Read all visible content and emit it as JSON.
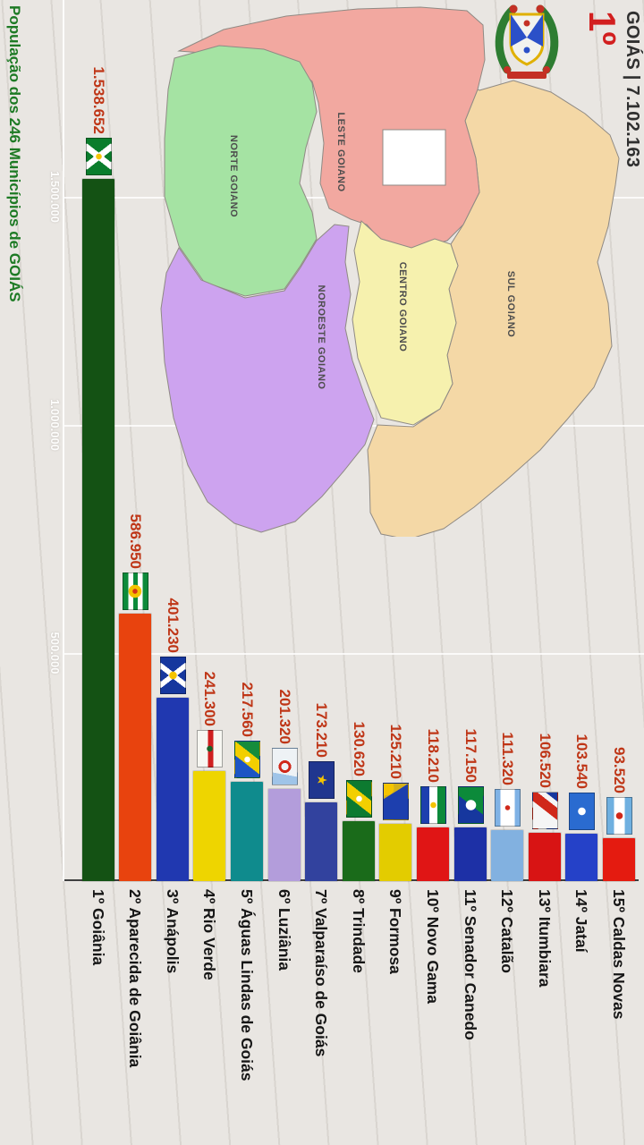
{
  "page": {
    "background": "#e9e6e2"
  },
  "title": "População dos 246 Municípios de GOIÁS",
  "header": {
    "state_line": "GOIÁS | 7.102.163",
    "rank": "1º",
    "coat_of_arms_icon": "goias-coat-of-arms"
  },
  "palette": {
    "title": "#1d7a24",
    "value": "#bf3617",
    "label": "#161616",
    "rank": "#d21f1f",
    "state_line": "#2f2f2f",
    "gridline_label": "#fdfdfc"
  },
  "map": {
    "name": "Mapa de Goiás - mesorregiões",
    "df_cutout_color": "#ffffff",
    "regions": [
      {
        "name": "NORTE GOIANO",
        "color": "#a5e3a3"
      },
      {
        "name": "LESTE GOIANO",
        "color": "#f2a8a0"
      },
      {
        "name": "NOROESTE GOIANO",
        "color": "#cda3ef"
      },
      {
        "name": "CENTRO GOIANO",
        "color": "#f6f1ae"
      },
      {
        "name": "SUL GOIANO",
        "color": "#f4d8a6"
      }
    ]
  },
  "chart_data": {
    "type": "bar",
    "title": "População dos 246 Municípios de GOIÁS",
    "total_label": "GOIÁS | 7.102.163",
    "total_value": 7102163,
    "x_max": 1550000,
    "gridlines": [
      {
        "value": 500000,
        "label": "500.000"
      },
      {
        "value": 1000000,
        "label": "1.000.000"
      },
      {
        "value": 1500000,
        "label": "1.500.000"
      }
    ],
    "rows": [
      {
        "rank": 1,
        "rank_label": "1º",
        "name": "Goiânia",
        "label": "1º Goiânia",
        "value": 1538652,
        "value_label": "1.538.652",
        "color": "#145214",
        "flag": {
          "name": "flag-goiania",
          "background": "radial-gradient(circle at 50% 50%, #f5c400 0 3px, rgba(0,0,0,0) 3.5px), linear-gradient(52deg, rgba(0,0,0,0) 43%, #ffffff 43%, #ffffff 57%, rgba(0,0,0,0) 57%), linear-gradient(-52deg, rgba(0,0,0,0) 43%, #ffffff 43%, #ffffff 57%, rgba(0,0,0,0) 57%), linear-gradient(#0a7d2c, #0a7d2c)"
        }
      },
      {
        "rank": 2,
        "rank_label": "2º",
        "name": "Aparecida de Goiânia",
        "label": "2º Aparecida de Goiânia",
        "value": 586950,
        "value_label": "586.950",
        "color": "#e8430e",
        "flag": {
          "name": "flag-aparecida-de-goiania",
          "background": "radial-gradient(circle at 50% 52%, #d43318 0 2.5px, rgba(0,0,0,0) 3px), radial-gradient(circle at 50% 52%, #f3c300 0 7px, rgba(0,0,0,0) 7.5px), linear-gradient(#0c8a3a 0 20%, #ffffff 20% 40%, #0c8a3a 40% 60%, #ffffff 60% 80%, #0c8a3a 80%)"
        }
      },
      {
        "rank": 3,
        "rank_label": "3º",
        "name": "Anápolis",
        "label": "3º Anápolis",
        "value": 401230,
        "value_label": "401.230",
        "color": "#2038b0",
        "flag": {
          "name": "flag-anapolis",
          "background": "radial-gradient(circle at 50% 50%, #f5c400 0 4px, rgba(0,0,0,0) 4.5px), linear-gradient(52deg, rgba(0,0,0,0) 44%, #ffffff 44%, #ffffff 56%, rgba(0,0,0,0) 56%), linear-gradient(-52deg, rgba(0,0,0,0) 44%, #ffffff 44%, #ffffff 56%, rgba(0,0,0,0) 56%), linear-gradient(#16379e, #16379e)"
        }
      },
      {
        "rank": 4,
        "rank_label": "4º",
        "name": "Rio Verde",
        "label": "4º Rio Verde",
        "value": 241300,
        "value_label": "241.300",
        "color": "#eed500",
        "flag": {
          "name": "flag-rio-verde",
          "background": "radial-gradient(circle at 50% 50%, #17662a 0 3px, rgba(0,0,0,0) 3.5px), linear-gradient(rgba(0,0,0,0) 0 36%, #cf2020 36% 58%, rgba(0,0,0,0) 58%), linear-gradient(#f7f7f2, #f7f7f2)"
        }
      },
      {
        "rank": 5,
        "rank_label": "5º",
        "name": "Águas Lindas de Goiás",
        "label": "5º Águas Lindas de Goiás",
        "value": 217560,
        "value_label": "217.560",
        "color": "#0f8b8d",
        "flag": {
          "name": "flag-aguas-lindas-de-goias",
          "background": "radial-gradient(circle at 50% 50%, #ffffff 0 3px, rgba(0,0,0,0) 3.5px), linear-gradient(128deg, #168c3c 0 34%, #f2cf00 34% 60%, #1c55c4 60%)"
        }
      },
      {
        "rank": 6,
        "rank_label": "6º",
        "name": "Luziânia",
        "label": "6º Luziânia",
        "value": 201320,
        "value_label": "201.320",
        "color": "#b39ddb",
        "flag": {
          "name": "flag-luziania",
          "background": "radial-gradient(circle at 50% 50%, rgba(0,0,0,0) 0 4px, #d0281a 4px 7px, rgba(0,0,0,0) 7px), linear-gradient(100deg, #eef2f5 0 70%, #9fc4e8 70%)"
        }
      },
      {
        "rank": 7,
        "rank_label": "7º",
        "name": "Valparaíso de Goiás",
        "label": "7º Valparaíso de Goiás",
        "value": 173210,
        "value_label": "173.210",
        "color": "#32429e",
        "flag": {
          "name": "flag-valparaiso-de-goias",
          "background": "linear-gradient(#20368f, #20368f)",
          "glyph": "★",
          "glyph_color": "#f5c400"
        }
      },
      {
        "rank": 8,
        "rank_label": "8º",
        "name": "Trindade",
        "label": "8º Trindade",
        "value": 130620,
        "value_label": "130.620",
        "color": "#1a6b1a",
        "flag": {
          "name": "flag-trindade",
          "background": "radial-gradient(circle at 50% 50%, #ffffff 0 3px, rgba(0,0,0,0) 3.5px), linear-gradient(128deg, rgba(0,0,0,0) 0 36%, #f2cf00 36% 62%, rgba(0,0,0,0) 62%), linear-gradient(#0d7a30, #0d7a30)"
        }
      },
      {
        "rank": 9,
        "rank_label": "9º",
        "name": "Formosa",
        "label": "9º Formosa",
        "value": 125210,
        "value_label": "125.210",
        "color": "#e3cc00",
        "flag": {
          "name": "flag-formosa",
          "background": "radial-gradient(circle at 12% 88%, #f5c400 0 8px, rgba(0,0,0,0) 8.5px), linear-gradient(38deg, rgba(245,196,0,0.9) 0 20%, rgba(0,0,0,0) 20.5%), linear-gradient(58deg, rgba(245,196,0,0.85) 0 30%, rgba(0,0,0,0) 30.5%), linear-gradient(#1d3fae, #1d3fae)"
        }
      },
      {
        "rank": 10,
        "rank_label": "10º",
        "name": "Novo Gama",
        "label": "10º Novo Gama",
        "value": 118210,
        "value_label": "118.210",
        "color": "#e01515",
        "flag": {
          "name": "flag-novo-gama",
          "background": "radial-gradient(circle at 50% 50%, #f3c300 0 3px, rgba(0,0,0,0) 3.5px), linear-gradient(#0c8a3a 0 33%, #ffffff 33% 66%, #1d3fae 66%)"
        }
      },
      {
        "rank": 11,
        "rank_label": "11º",
        "name": "Senador Canedo",
        "label": "11º Senador Canedo",
        "value": 117150,
        "value_label": "117.150",
        "color": "#1d30a6",
        "flag": {
          "name": "flag-senador-canedo",
          "background": "radial-gradient(circle at 50% 50%, #ffffff 0 5.5px, rgba(0,0,0,0) 6px), linear-gradient(128deg, #0c8a3a 0 50%, #16379e 50%)"
        }
      },
      {
        "rank": 12,
        "rank_label": "12º",
        "name": "Catalão",
        "label": "12º Catalão",
        "value": 111320,
        "value_label": "111.320",
        "color": "#82b1e0",
        "flag": {
          "name": "flag-catalao",
          "background": "radial-gradient(circle at 50% 50%, #d0281a 0 2.5px, rgba(0,0,0,0) 3px), linear-gradient(#7fb2e5 0 20%, #ffffff 20% 80%, #7fb2e5 80%)"
        }
      },
      {
        "rank": 13,
        "rank_label": "13º",
        "name": "Itumbiara",
        "label": "13º Itumbiara",
        "value": 106520,
        "value_label": "106.520",
        "color": "#d81414",
        "flag": {
          "name": "flag-itumbiara",
          "background": "linear-gradient(128deg, #16379e 0 16%, rgba(0,0,0,0) 16.5%), linear-gradient(128deg, rgba(0,0,0,0) 0 28%, #d0281a 28% 50%, rgba(0,0,0,0) 50.5%), linear-gradient(#f5f5f5, #f5f5f5)"
        }
      },
      {
        "rank": 14,
        "rank_label": "14º",
        "name": "Jataí",
        "label": "14º Jataí",
        "value": 103540,
        "value_label": "103.540",
        "color": "#2541c8",
        "flag": {
          "name": "flag-jatai",
          "background": "radial-gradient(circle at 50% 50%, #ffffff 0 4px, rgba(0,0,0,0) 4.5px), linear-gradient(#2a6bd0, #2a6bd0)"
        }
      },
      {
        "rank": 15,
        "rank_label": "15º",
        "name": "Caldas Novas",
        "label": "15º Caldas Novas",
        "value": 93520,
        "value_label": "93.520",
        "color": "#e41b10",
        "flag": {
          "name": "flag-caldas-novas",
          "background": "radial-gradient(circle at 50% 50%, #d0281a 0 3.5px, rgba(0,0,0,0) 4px), linear-gradient(#6fb0e0 0 28%, #ffffff 28% 72%, #6fb0e0 72%)"
        }
      }
    ]
  }
}
